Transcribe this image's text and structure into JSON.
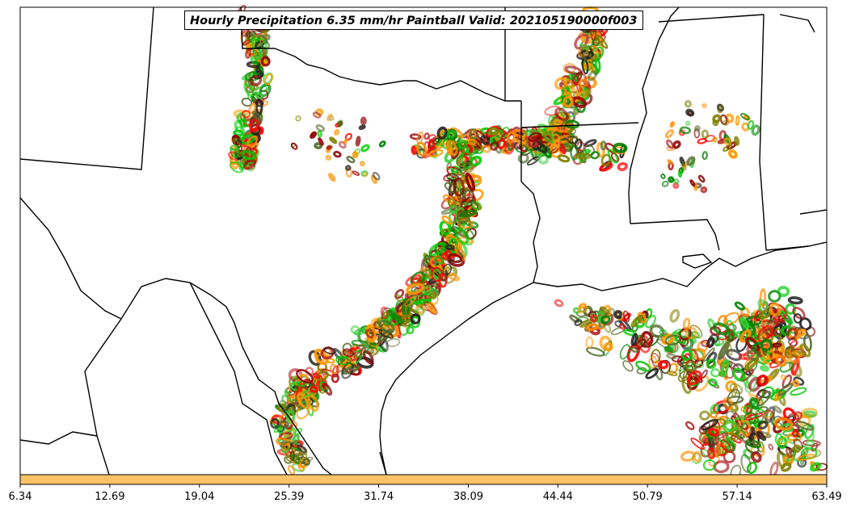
{
  "title": "Hourly Precipitation 6.35 mm/hr Paintball Valid: 202105190000f003",
  "colorbar": {
    "color": "#fdc266",
    "ticks": [
      "6.34",
      "12.69",
      "19.04",
      "25.39",
      "31.74",
      "38.09",
      "44.44",
      "50.79",
      "57.14",
      "63.49"
    ]
  },
  "palette": [
    "#ff8c00",
    "#ff0000",
    "#00c800",
    "#008000",
    "#808000",
    "#8b0000",
    "#ff9900",
    "#b22222",
    "#32cd32",
    "#556b2f",
    "#222222"
  ]
}
